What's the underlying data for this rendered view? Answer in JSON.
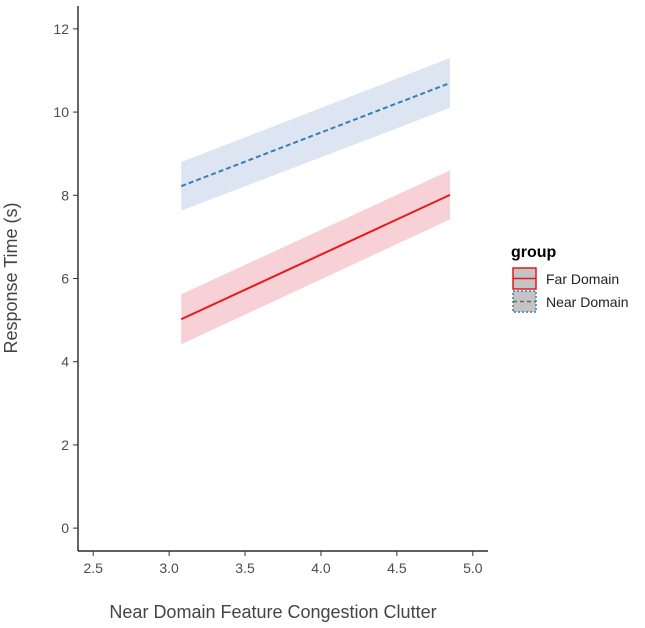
{
  "chart_data": {
    "type": "line",
    "title": "",
    "xlabel": "Near Domain Feature Congestion Clutter",
    "ylabel": "Response Time (s)",
    "xlim": [
      2.4,
      5.1
    ],
    "ylim": [
      -0.55,
      12.55
    ],
    "x_ticks": [
      2.5,
      3.0,
      3.5,
      4.0,
      4.5,
      5.0
    ],
    "x_tick_labels": [
      "2.5",
      "3.0",
      "3.5",
      "4.0",
      "4.5",
      "5.0"
    ],
    "y_ticks": [
      0,
      2,
      4,
      6,
      8,
      10,
      12
    ],
    "y_tick_labels": [
      "0",
      "2",
      "4",
      "6",
      "8",
      "10",
      "12"
    ],
    "grid": false,
    "legend": {
      "title": "group",
      "position": "right"
    },
    "series": [
      {
        "name": "Far Domain",
        "color": "#e41a1c",
        "band_color": "#f4c2c8",
        "line_style": "solid",
        "x": [
          3.08,
          4.85
        ],
        "y": [
          5.02,
          8.01
        ],
        "ci_lower": [
          4.42,
          7.42
        ],
        "ci_upper": [
          5.62,
          8.6
        ]
      },
      {
        "name": "Near Domain",
        "color": "#377eb8",
        "band_color": "#d0dcec",
        "line_style": "dashed",
        "x": [
          3.08,
          4.85
        ],
        "y": [
          8.22,
          10.7
        ],
        "ci_lower": [
          7.63,
          10.1
        ],
        "ci_upper": [
          8.8,
          11.3
        ]
      }
    ]
  }
}
